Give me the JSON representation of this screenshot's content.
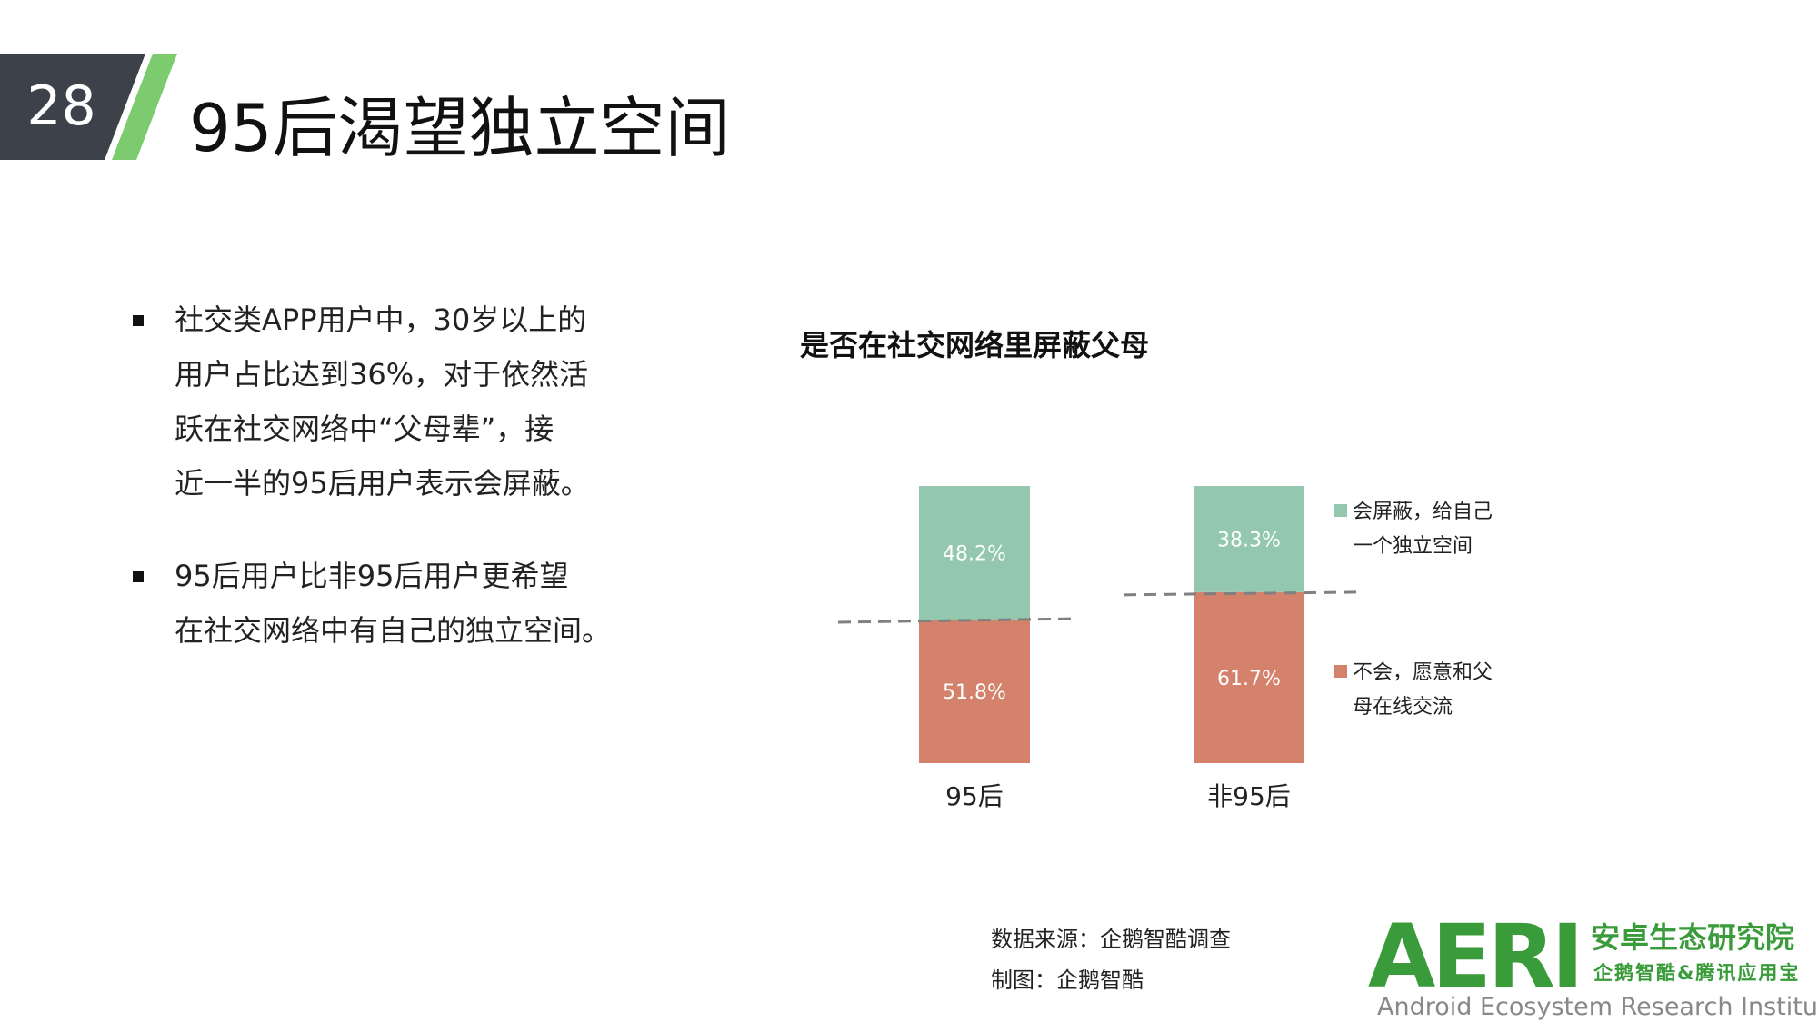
{
  "header": {
    "page_number": "28",
    "title": "95后渴望独立空间"
  },
  "bullets": [
    {
      "lines": [
        "社交类APP用户中，30岁以上的",
        "用户占比达到36%，对于依然活",
        "跃在社交网络中“父母辈”，接",
        "近一半的95后用户表示会屏蔽。"
      ]
    },
    {
      "lines": [
        "95后用户比非95后用户更希望",
        "在社交网络中有自己的独立空间。"
      ]
    }
  ],
  "colors": {
    "header_dark": "#3d414a",
    "header_stripe": "#7ccb6e",
    "series_block": "#93c8ae",
    "series_no": "#d4826c",
    "dashed_line": "#808080",
    "logo_green": "#3a9b3a"
  },
  "chart_data": {
    "type": "bar",
    "stacked": true,
    "title": "是否在社交网络里屏蔽父母",
    "categories": [
      "95后",
      "非95后"
    ],
    "series": [
      {
        "name": "不会，愿意和父母在线交流",
        "values": [
          51.8,
          61.7
        ],
        "labels": [
          "51.8%",
          "61.7%"
        ]
      },
      {
        "name": "会屏蔽，给自己一个独立空间",
        "values": [
          48.2,
          38.3
        ],
        "labels": [
          "48.2%",
          "38.3%"
        ]
      }
    ],
    "ylim": [
      0,
      100
    ],
    "legend_position": "right",
    "grid": false
  },
  "legend": {
    "item1": {
      "line1": "会屏蔽，给自己",
      "line2": "一个独立空间"
    },
    "item2": {
      "line1": "不会，愿意和父",
      "line2": "母在线交流"
    }
  },
  "source": {
    "line1": "数据来源：企鹅智酷调查",
    "line2": "制图：企鹅智酷"
  },
  "logo": {
    "mark": "AERI",
    "cn_name": "安卓生态研究院",
    "cn_sub": "企鹅智酷&腾讯应用宝",
    "en_name": "Android Ecosystem Research Institute"
  }
}
